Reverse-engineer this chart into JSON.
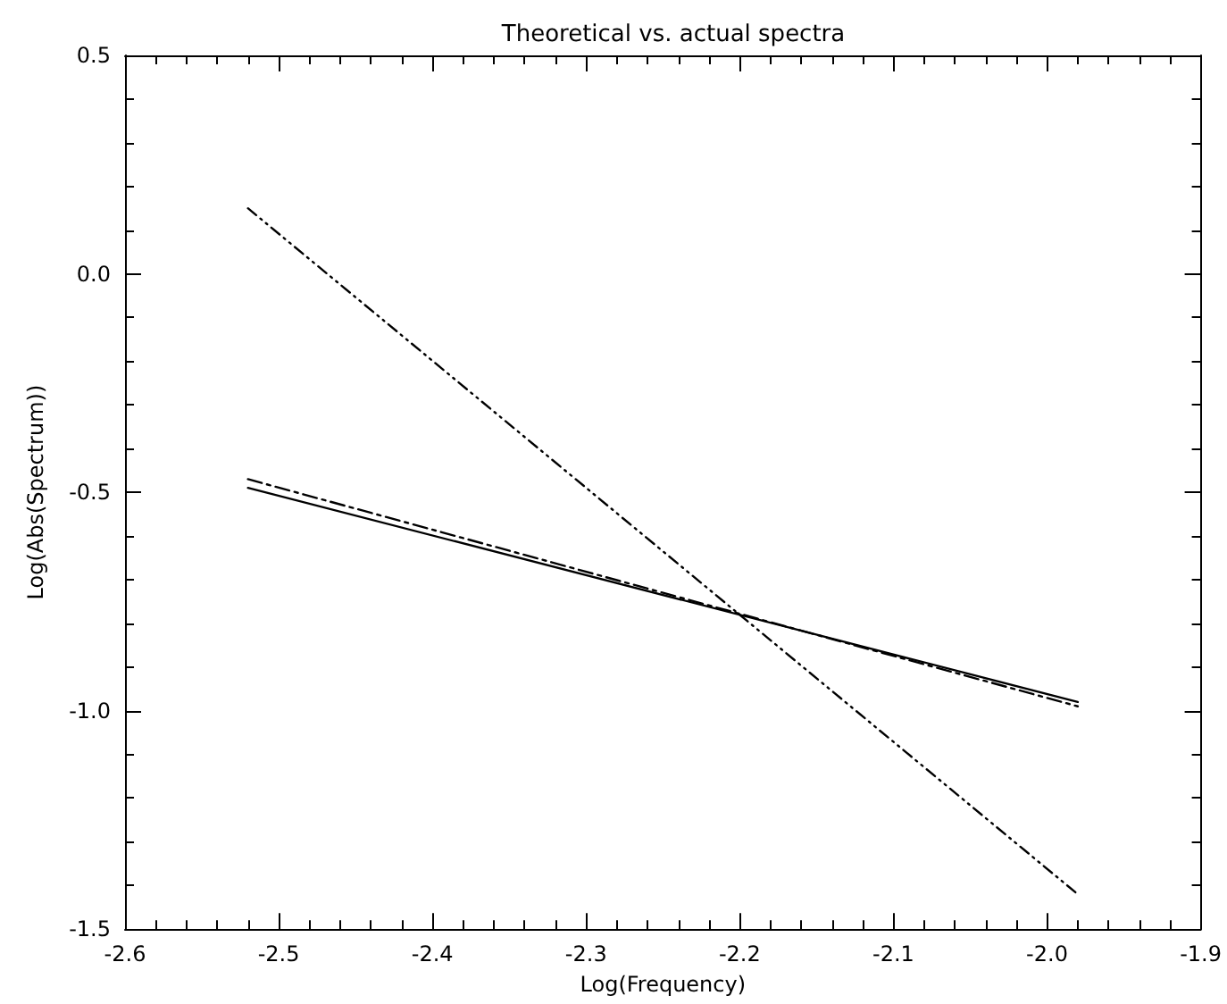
{
  "chart_data": {
    "type": "line",
    "title": "Theoretical vs. actual spectra",
    "xlabel": "Log(Frequency)",
    "ylabel": "Log(Abs(Spectrum))",
    "xlim": [
      -2.6,
      -1.9
    ],
    "xticks": [
      -2.6,
      -2.5,
      -2.4,
      -2.3,
      -2.2,
      -2.1,
      {
        "value": -2.0,
        "label": "-2.0"
      },
      -1.9
    ],
    "ylim": [
      -1.5,
      0.5
    ],
    "yticks": [
      -1.5,
      {
        "value": -1.0,
        "label": "-1.0"
      },
      -0.5,
      {
        "value": 0.0,
        "label": "0.0"
      },
      0.5
    ],
    "grid": false,
    "marker": "none",
    "x": [
      -2.52,
      -1.98
    ],
    "series": [
      {
        "color": "#000000",
        "line_style": "solid",
        "values": [
          -0.49,
          -0.98
        ]
      },
      {
        "color": "#000000",
        "line_style": "dashed",
        "values": [
          -0.47,
          -0.99
        ]
      },
      {
        "color": "#000000",
        "line_style": "dotted",
        "values": [
          0.15,
          -1.42
        ]
      }
    ]
  }
}
